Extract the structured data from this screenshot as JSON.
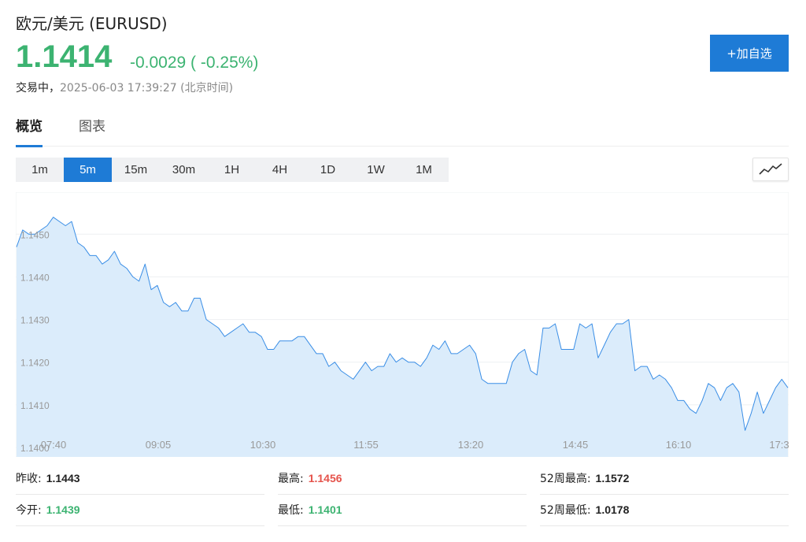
{
  "header": {
    "title": "欧元/美元  (EURUSD)",
    "price": "1.1414",
    "change": "-0.0029 ( -0.25%)",
    "status_label": "交易中，",
    "timestamp": "2025-06-03 17:39:27  (北京时间)",
    "add_button": "+加自选"
  },
  "tabs": [
    {
      "label": "概览",
      "active": true
    },
    {
      "label": "图表",
      "active": false
    }
  ],
  "periods": [
    "1m",
    "5m",
    "15m",
    "30m",
    "1H",
    "4H",
    "1D",
    "1W",
    "1M"
  ],
  "active_period": "5m",
  "chart_type_icon": "line-chart-icon",
  "colors": {
    "accent": "#1e7bd6",
    "down": "#3cb371",
    "up": "#e5534b",
    "line": "#3a8ee6",
    "area": "#dbecfb"
  },
  "chart_data": {
    "type": "area",
    "x_ticks": [
      "07:40",
      "09:05",
      "10:30",
      "11:55",
      "13:20",
      "14:45",
      "16:10",
      "17:3"
    ],
    "y_ticks": [
      "1.1400",
      "1.1410",
      "1.1420",
      "1.1430",
      "1.1440",
      "1.1450"
    ],
    "ylim": [
      1.14,
      1.1458
    ],
    "values": [
      1.1447,
      1.1451,
      1.145,
      1.145,
      1.1451,
      1.1452,
      1.1454,
      1.1453,
      1.1452,
      1.1453,
      1.1448,
      1.1447,
      1.1445,
      1.1445,
      1.1443,
      1.1444,
      1.1446,
      1.1443,
      1.1442,
      1.144,
      1.1439,
      1.1443,
      1.1437,
      1.1438,
      1.1434,
      1.1433,
      1.1434,
      1.1432,
      1.1432,
      1.1435,
      1.1435,
      1.143,
      1.1429,
      1.1428,
      1.1426,
      1.1427,
      1.1428,
      1.1429,
      1.1427,
      1.1427,
      1.1426,
      1.1423,
      1.1423,
      1.1425,
      1.1425,
      1.1425,
      1.1426,
      1.1426,
      1.1424,
      1.1422,
      1.1422,
      1.1419,
      1.142,
      1.1418,
      1.1417,
      1.1416,
      1.1418,
      1.142,
      1.1418,
      1.1419,
      1.1419,
      1.1422,
      1.142,
      1.1421,
      1.142,
      1.142,
      1.1419,
      1.1421,
      1.1424,
      1.1423,
      1.1425,
      1.1422,
      1.1422,
      1.1423,
      1.1424,
      1.1422,
      1.1416,
      1.1415,
      1.1415,
      1.1415,
      1.1415,
      1.142,
      1.1422,
      1.1423,
      1.1418,
      1.1417,
      1.1428,
      1.1428,
      1.1429,
      1.1423,
      1.1423,
      1.1423,
      1.1429,
      1.1428,
      1.1429,
      1.1421,
      1.1424,
      1.1427,
      1.1429,
      1.1429,
      1.143,
      1.1418,
      1.1419,
      1.1419,
      1.1416,
      1.1417,
      1.1416,
      1.1414,
      1.1411,
      1.1411,
      1.1409,
      1.1408,
      1.1411,
      1.1415,
      1.1414,
      1.1411,
      1.1414,
      1.1415,
      1.1413,
      1.1404,
      1.1408,
      1.1413,
      1.1408,
      1.1411,
      1.1414,
      1.1416,
      1.1414
    ]
  },
  "stats": {
    "prev_close_label": "昨收:",
    "prev_close": "1.1443",
    "high_label": "最高:",
    "high": "1.1456",
    "week52_high_label": "52周最高:",
    "week52_high": "1.1572",
    "open_label": "今开:",
    "open": "1.1439",
    "low_label": "最低:",
    "low": "1.1401",
    "week52_low_label": "52周最低:",
    "week52_low": "1.0178"
  }
}
